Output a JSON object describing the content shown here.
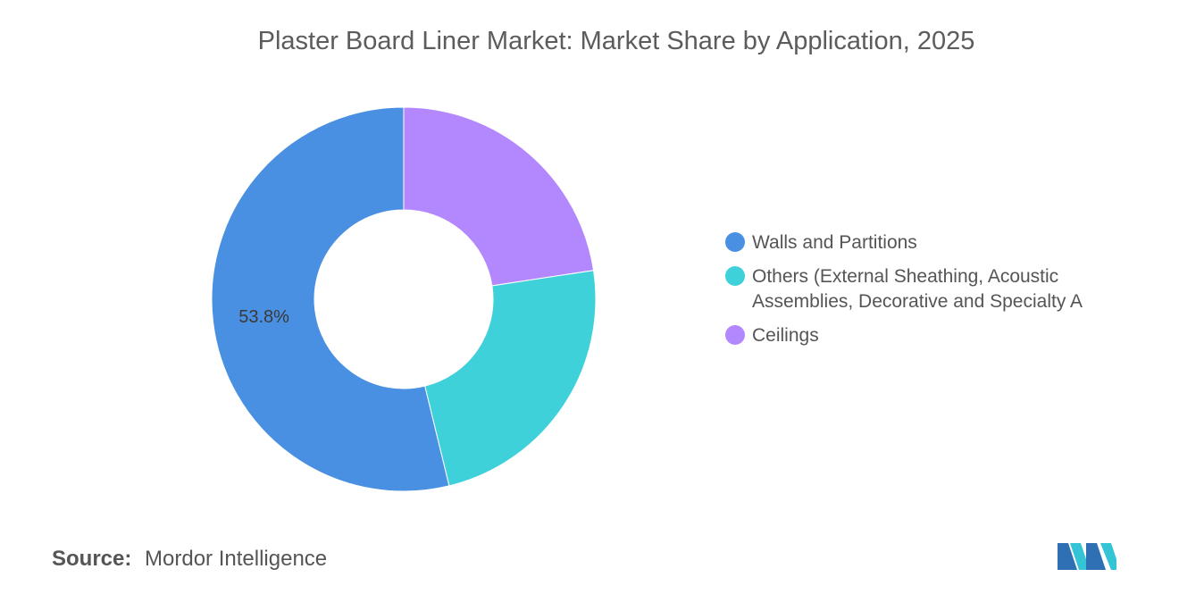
{
  "chart_data": {
    "type": "pie",
    "title": "Plaster Board Liner Market: Market Share by Application, 2025",
    "categories": [
      "Walls and Partitions",
      "Others (External Sheathing, Acoustic Assemblies, Decorative and Specialty A",
      "Ceilings"
    ],
    "values": [
      53.8,
      23.6,
      22.6
    ],
    "data_labels": [
      "53.8%",
      "",
      ""
    ],
    "colors": [
      "#4a90e2",
      "#3fd1da",
      "#b388ff"
    ],
    "donut": true,
    "legend_position": "right"
  },
  "source": {
    "label": "Source:",
    "value": "Mordor Intelligence"
  },
  "logo": {
    "icon": "mordor-intelligence-logo"
  }
}
